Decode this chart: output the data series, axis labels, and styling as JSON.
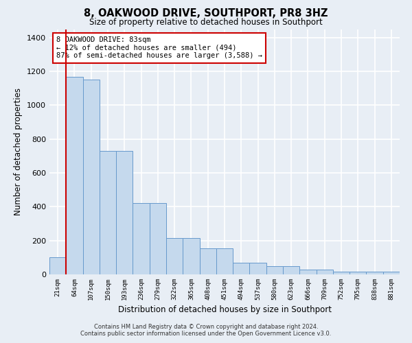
{
  "title": "8, OAKWOOD DRIVE, SOUTHPORT, PR8 3HZ",
  "subtitle": "Size of property relative to detached houses in Southport",
  "xlabel": "Distribution of detached houses by size in Southport",
  "ylabel": "Number of detached properties",
  "categories": [
    "21sqm",
    "64sqm",
    "107sqm",
    "150sqm",
    "193sqm",
    "236sqm",
    "279sqm",
    "322sqm",
    "365sqm",
    "408sqm",
    "451sqm",
    "494sqm",
    "537sqm",
    "580sqm",
    "623sqm",
    "666sqm",
    "709sqm",
    "752sqm",
    "795sqm",
    "838sqm",
    "881sqm"
  ],
  "bar_heights": [
    100,
    1170,
    1150,
    730,
    730,
    420,
    420,
    215,
    215,
    155,
    155,
    70,
    70,
    48,
    48,
    30,
    30,
    18,
    18,
    15,
    15
  ],
  "bar_color": "#c5d9ed",
  "bar_edge_color": "#6699cc",
  "vline_color": "#cc0000",
  "vline_x": 1,
  "annotation_text": "8 OAKWOOD DRIVE: 83sqm\n← 12% of detached houses are smaller (494)\n87% of semi-detached houses are larger (3,588) →",
  "annotation_box_color": "#ffffff",
  "annotation_box_edge": "#cc0000",
  "ylim": [
    0,
    1450
  ],
  "yticks": [
    0,
    200,
    400,
    600,
    800,
    1000,
    1200,
    1400
  ],
  "background_color": "#e8eef5",
  "plot_bg_color": "#e8eef5",
  "grid_color": "#ffffff",
  "footer_line1": "Contains HM Land Registry data © Crown copyright and database right 2024.",
  "footer_line2": "Contains public sector information licensed under the Open Government Licence v3.0."
}
